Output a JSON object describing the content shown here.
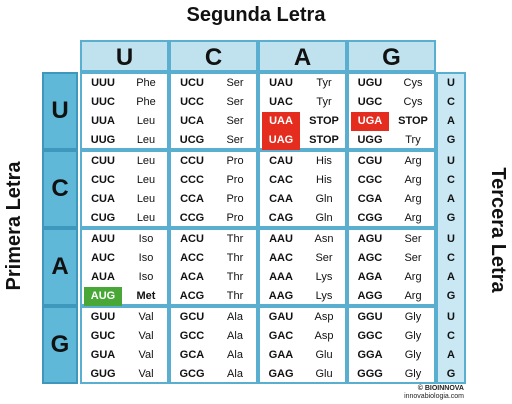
{
  "titles": {
    "top": "Segunda Letra",
    "left": "Primera Letra",
    "right": "Tercera Letra"
  },
  "second_letters": [
    "U",
    "C",
    "A",
    "G"
  ],
  "first_letters": [
    "U",
    "C",
    "A",
    "G"
  ],
  "third_letters": [
    "U",
    "C",
    "A",
    "G"
  ],
  "colors": {
    "header_light_blue": "#bfe2ee",
    "header_blue": "#5fb8d8",
    "stop_highlight": "#e52d1f",
    "start_highlight": "#48a737"
  },
  "table": [
    [
      [
        [
          "UUU",
          "Phe"
        ],
        [
          "UUC",
          "Phe"
        ],
        [
          "UUA",
          "Leu"
        ],
        [
          "UUG",
          "Leu"
        ]
      ],
      [
        [
          "UCU",
          "Ser"
        ],
        [
          "UCC",
          "Ser"
        ],
        [
          "UCA",
          "Ser"
        ],
        [
          "UCG",
          "Ser"
        ]
      ],
      [
        [
          "UAU",
          "Tyr"
        ],
        [
          "UAC",
          "Tyr"
        ],
        [
          "UAA",
          "STOP"
        ],
        [
          "UAG",
          "STOP"
        ]
      ],
      [
        [
          "UGU",
          "Cys"
        ],
        [
          "UGC",
          "Cys"
        ],
        [
          "UGA",
          "STOP"
        ],
        [
          "UGG",
          "Try"
        ]
      ]
    ],
    [
      [
        [
          "CUU",
          "Leu"
        ],
        [
          "CUC",
          "Leu"
        ],
        [
          "CUA",
          "Leu"
        ],
        [
          "CUG",
          "Leu"
        ]
      ],
      [
        [
          "CCU",
          "Pro"
        ],
        [
          "CCC",
          "Pro"
        ],
        [
          "CCA",
          "Pro"
        ],
        [
          "CCG",
          "Pro"
        ]
      ],
      [
        [
          "CAU",
          "His"
        ],
        [
          "CAC",
          "His"
        ],
        [
          "CAA",
          "Gln"
        ],
        [
          "CAG",
          "Gln"
        ]
      ],
      [
        [
          "CGU",
          "Arg"
        ],
        [
          "CGC",
          "Arg"
        ],
        [
          "CGA",
          "Arg"
        ],
        [
          "CGG",
          "Arg"
        ]
      ]
    ],
    [
      [
        [
          "AUU",
          "Iso"
        ],
        [
          "AUC",
          "Iso"
        ],
        [
          "AUA",
          "Iso"
        ],
        [
          "AUG",
          "Met"
        ]
      ],
      [
        [
          "ACU",
          "Thr"
        ],
        [
          "ACC",
          "Thr"
        ],
        [
          "ACA",
          "Thr"
        ],
        [
          "ACG",
          "Thr"
        ]
      ],
      [
        [
          "AAU",
          "Asn"
        ],
        [
          "AAC",
          "Ser"
        ],
        [
          "AAA",
          "Lys"
        ],
        [
          "AAG",
          "Lys"
        ]
      ],
      [
        [
          "AGU",
          "Ser"
        ],
        [
          "AGC",
          "Ser"
        ],
        [
          "AGA",
          "Arg"
        ],
        [
          "AGG",
          "Arg"
        ]
      ]
    ],
    [
      [
        [
          "GUU",
          "Val"
        ],
        [
          "GUC",
          "Val"
        ],
        [
          "GUA",
          "Val"
        ],
        [
          "GUG",
          "Val"
        ]
      ],
      [
        [
          "GCU",
          "Ala"
        ],
        [
          "GCC",
          "Ala"
        ],
        [
          "GCA",
          "Ala"
        ],
        [
          "GCG",
          "Ala"
        ]
      ],
      [
        [
          "GAU",
          "Asp"
        ],
        [
          "GAC",
          "Asp"
        ],
        [
          "GAA",
          "Glu"
        ],
        [
          "GAG",
          "Glu"
        ]
      ],
      [
        [
          "GGU",
          "Gly"
        ],
        [
          "GGC",
          "Gly"
        ],
        [
          "GGA",
          "Gly"
        ],
        [
          "GGG",
          "Gly"
        ]
      ]
    ]
  ],
  "highlights": {
    "stop_codons": [
      "UAA",
      "UAG",
      "UGA"
    ],
    "start_codon": "AUG"
  },
  "credit": {
    "brand": "© BIOINNOVA",
    "site": "innovabiologia.com"
  }
}
